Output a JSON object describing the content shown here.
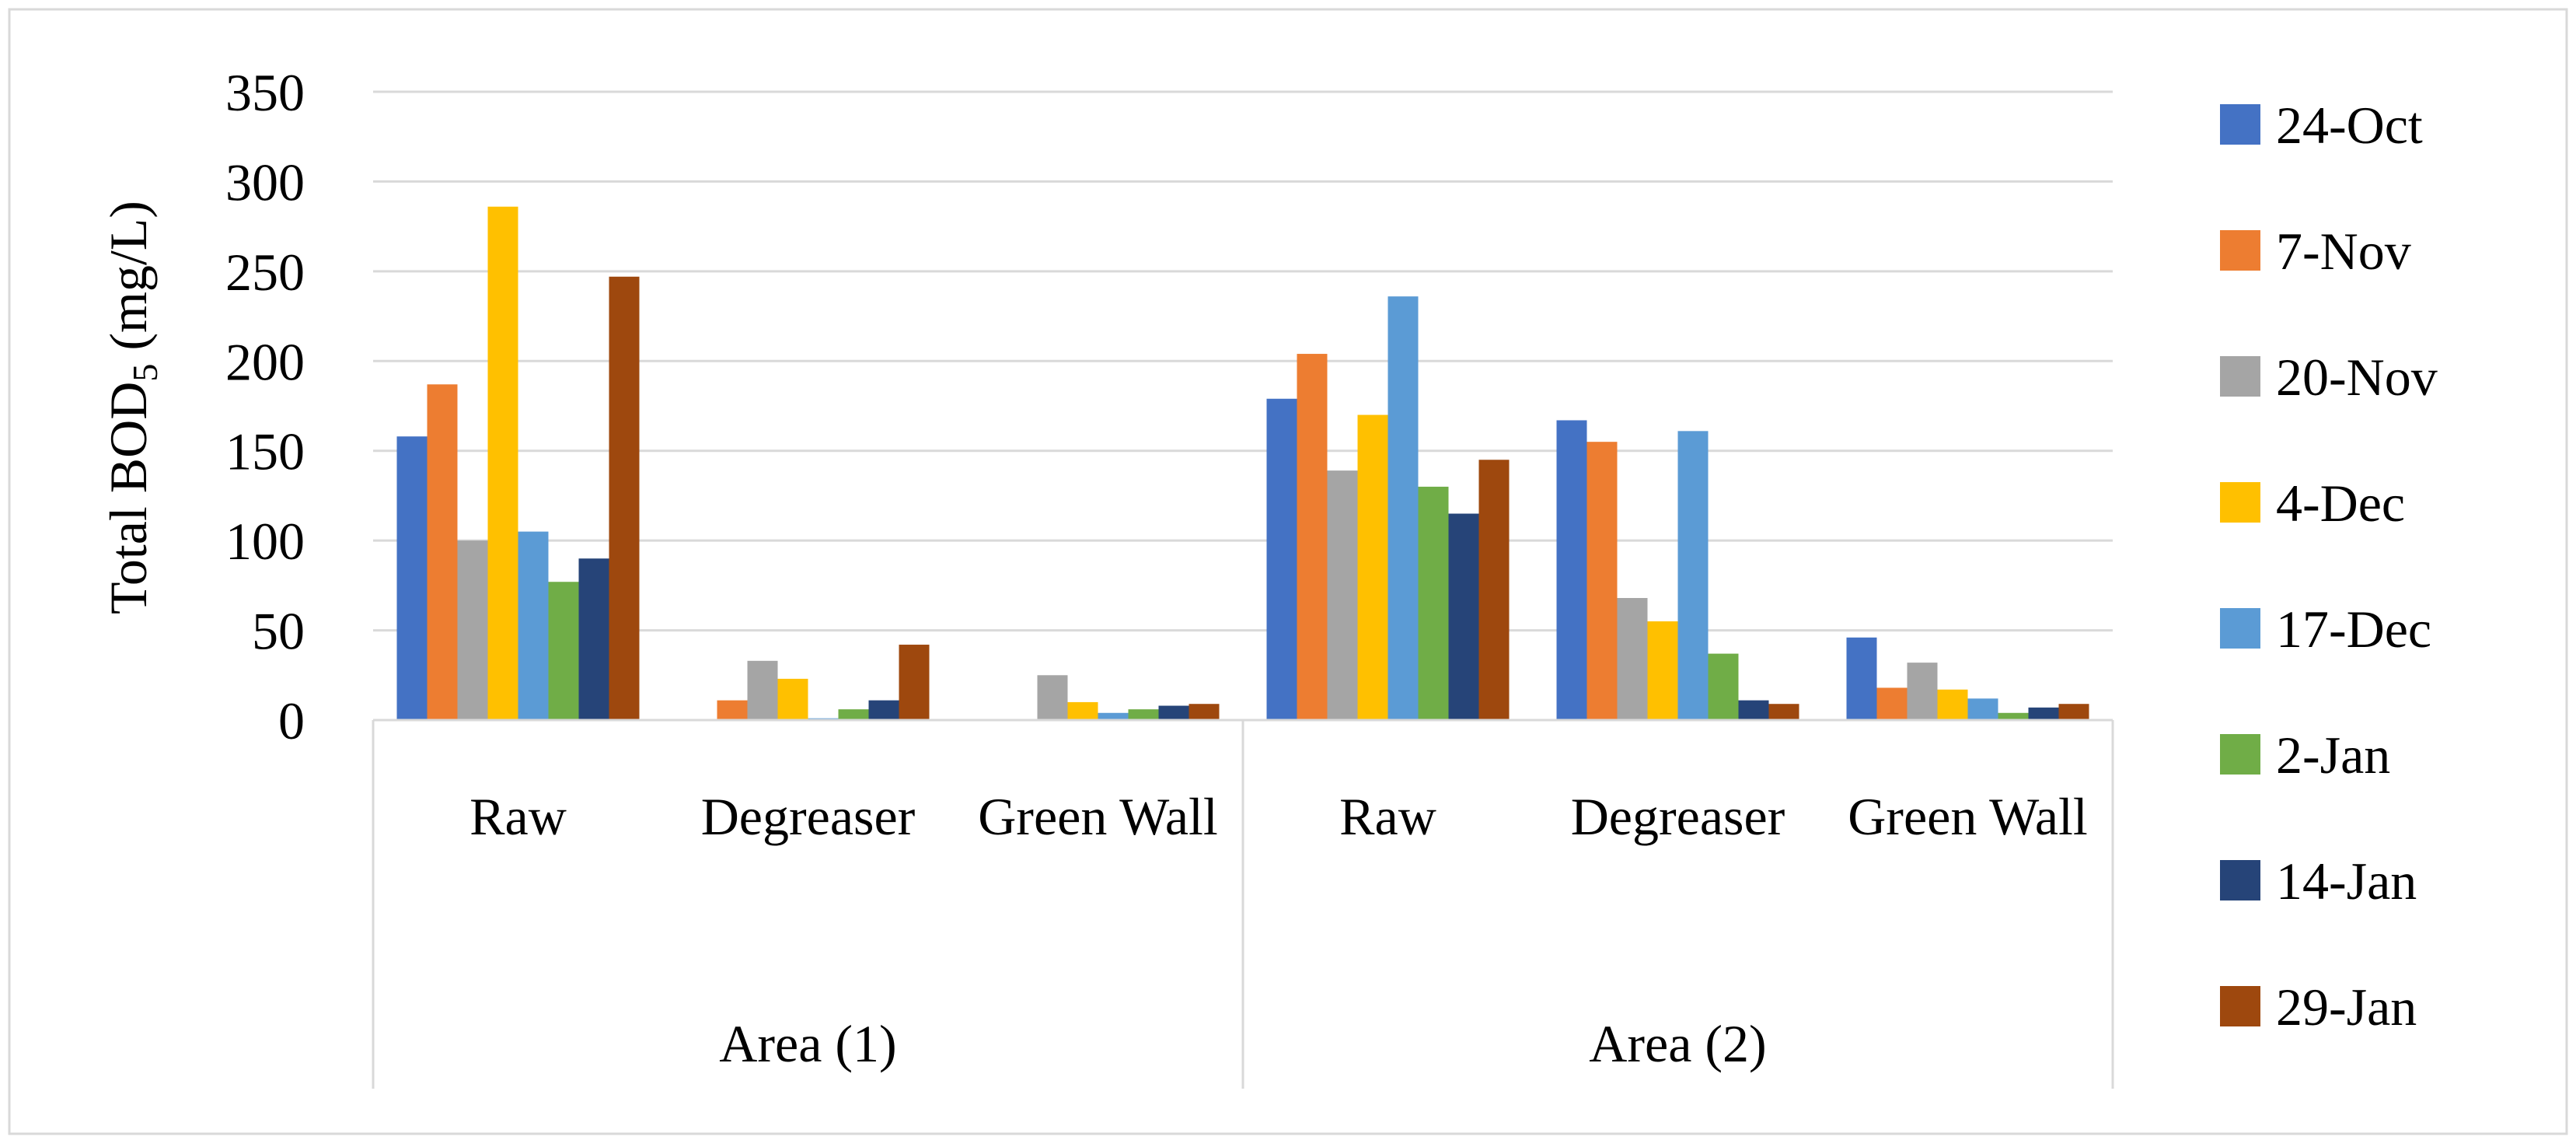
{
  "chart_data": {
    "type": "bar",
    "title": "",
    "ylabel": "Total BOD",
    "ylabel_subscript": "5",
    "ylabel_suffix": " (mg/L)",
    "xlabel": "",
    "ylim": [
      0,
      350
    ],
    "y_ticks": [
      "0",
      "50",
      "100",
      "150",
      "200",
      "250",
      "300",
      "350"
    ],
    "grid": true,
    "legend_position": "right",
    "groups": [
      {
        "label": "Area (1)",
        "categories": [
          "Raw",
          "Degreaser",
          "Green Wall"
        ]
      },
      {
        "label": "Area (2)",
        "categories": [
          "Raw",
          "Degreaser",
          "Green Wall"
        ]
      }
    ],
    "categories": [
      "Area (1) - Raw",
      "Area (1) - Degreaser",
      "Area (1) - Green Wall",
      "Area (2) - Raw",
      "Area (2) - Degreaser",
      "Area (2) - Green Wall"
    ],
    "series": [
      {
        "name": "24-Oct",
        "color": "#4472C4",
        "values": [
          158,
          0,
          0,
          179,
          167,
          46
        ]
      },
      {
        "name": "7-Nov",
        "color": "#ED7D31",
        "values": [
          187,
          11,
          0,
          204,
          155,
          18
        ]
      },
      {
        "name": "20-Nov",
        "color": "#A5A5A5",
        "values": [
          100,
          33,
          25,
          139,
          68,
          32
        ]
      },
      {
        "name": "4-Dec",
        "color": "#FFC000",
        "values": [
          286,
          23,
          10,
          170,
          55,
          17
        ]
      },
      {
        "name": "17-Dec",
        "color": "#5B9BD5",
        "values": [
          105,
          1,
          4,
          236,
          161,
          12
        ]
      },
      {
        "name": "2-Jan",
        "color": "#70AD47",
        "values": [
          77,
          6,
          6,
          130,
          37,
          4
        ]
      },
      {
        "name": "14-Jan",
        "color": "#264478",
        "values": [
          90,
          11,
          8,
          115,
          11,
          7
        ]
      },
      {
        "name": "29-Jan",
        "color": "#9E480E",
        "values": [
          247,
          42,
          9,
          145,
          9,
          9
        ]
      }
    ]
  }
}
